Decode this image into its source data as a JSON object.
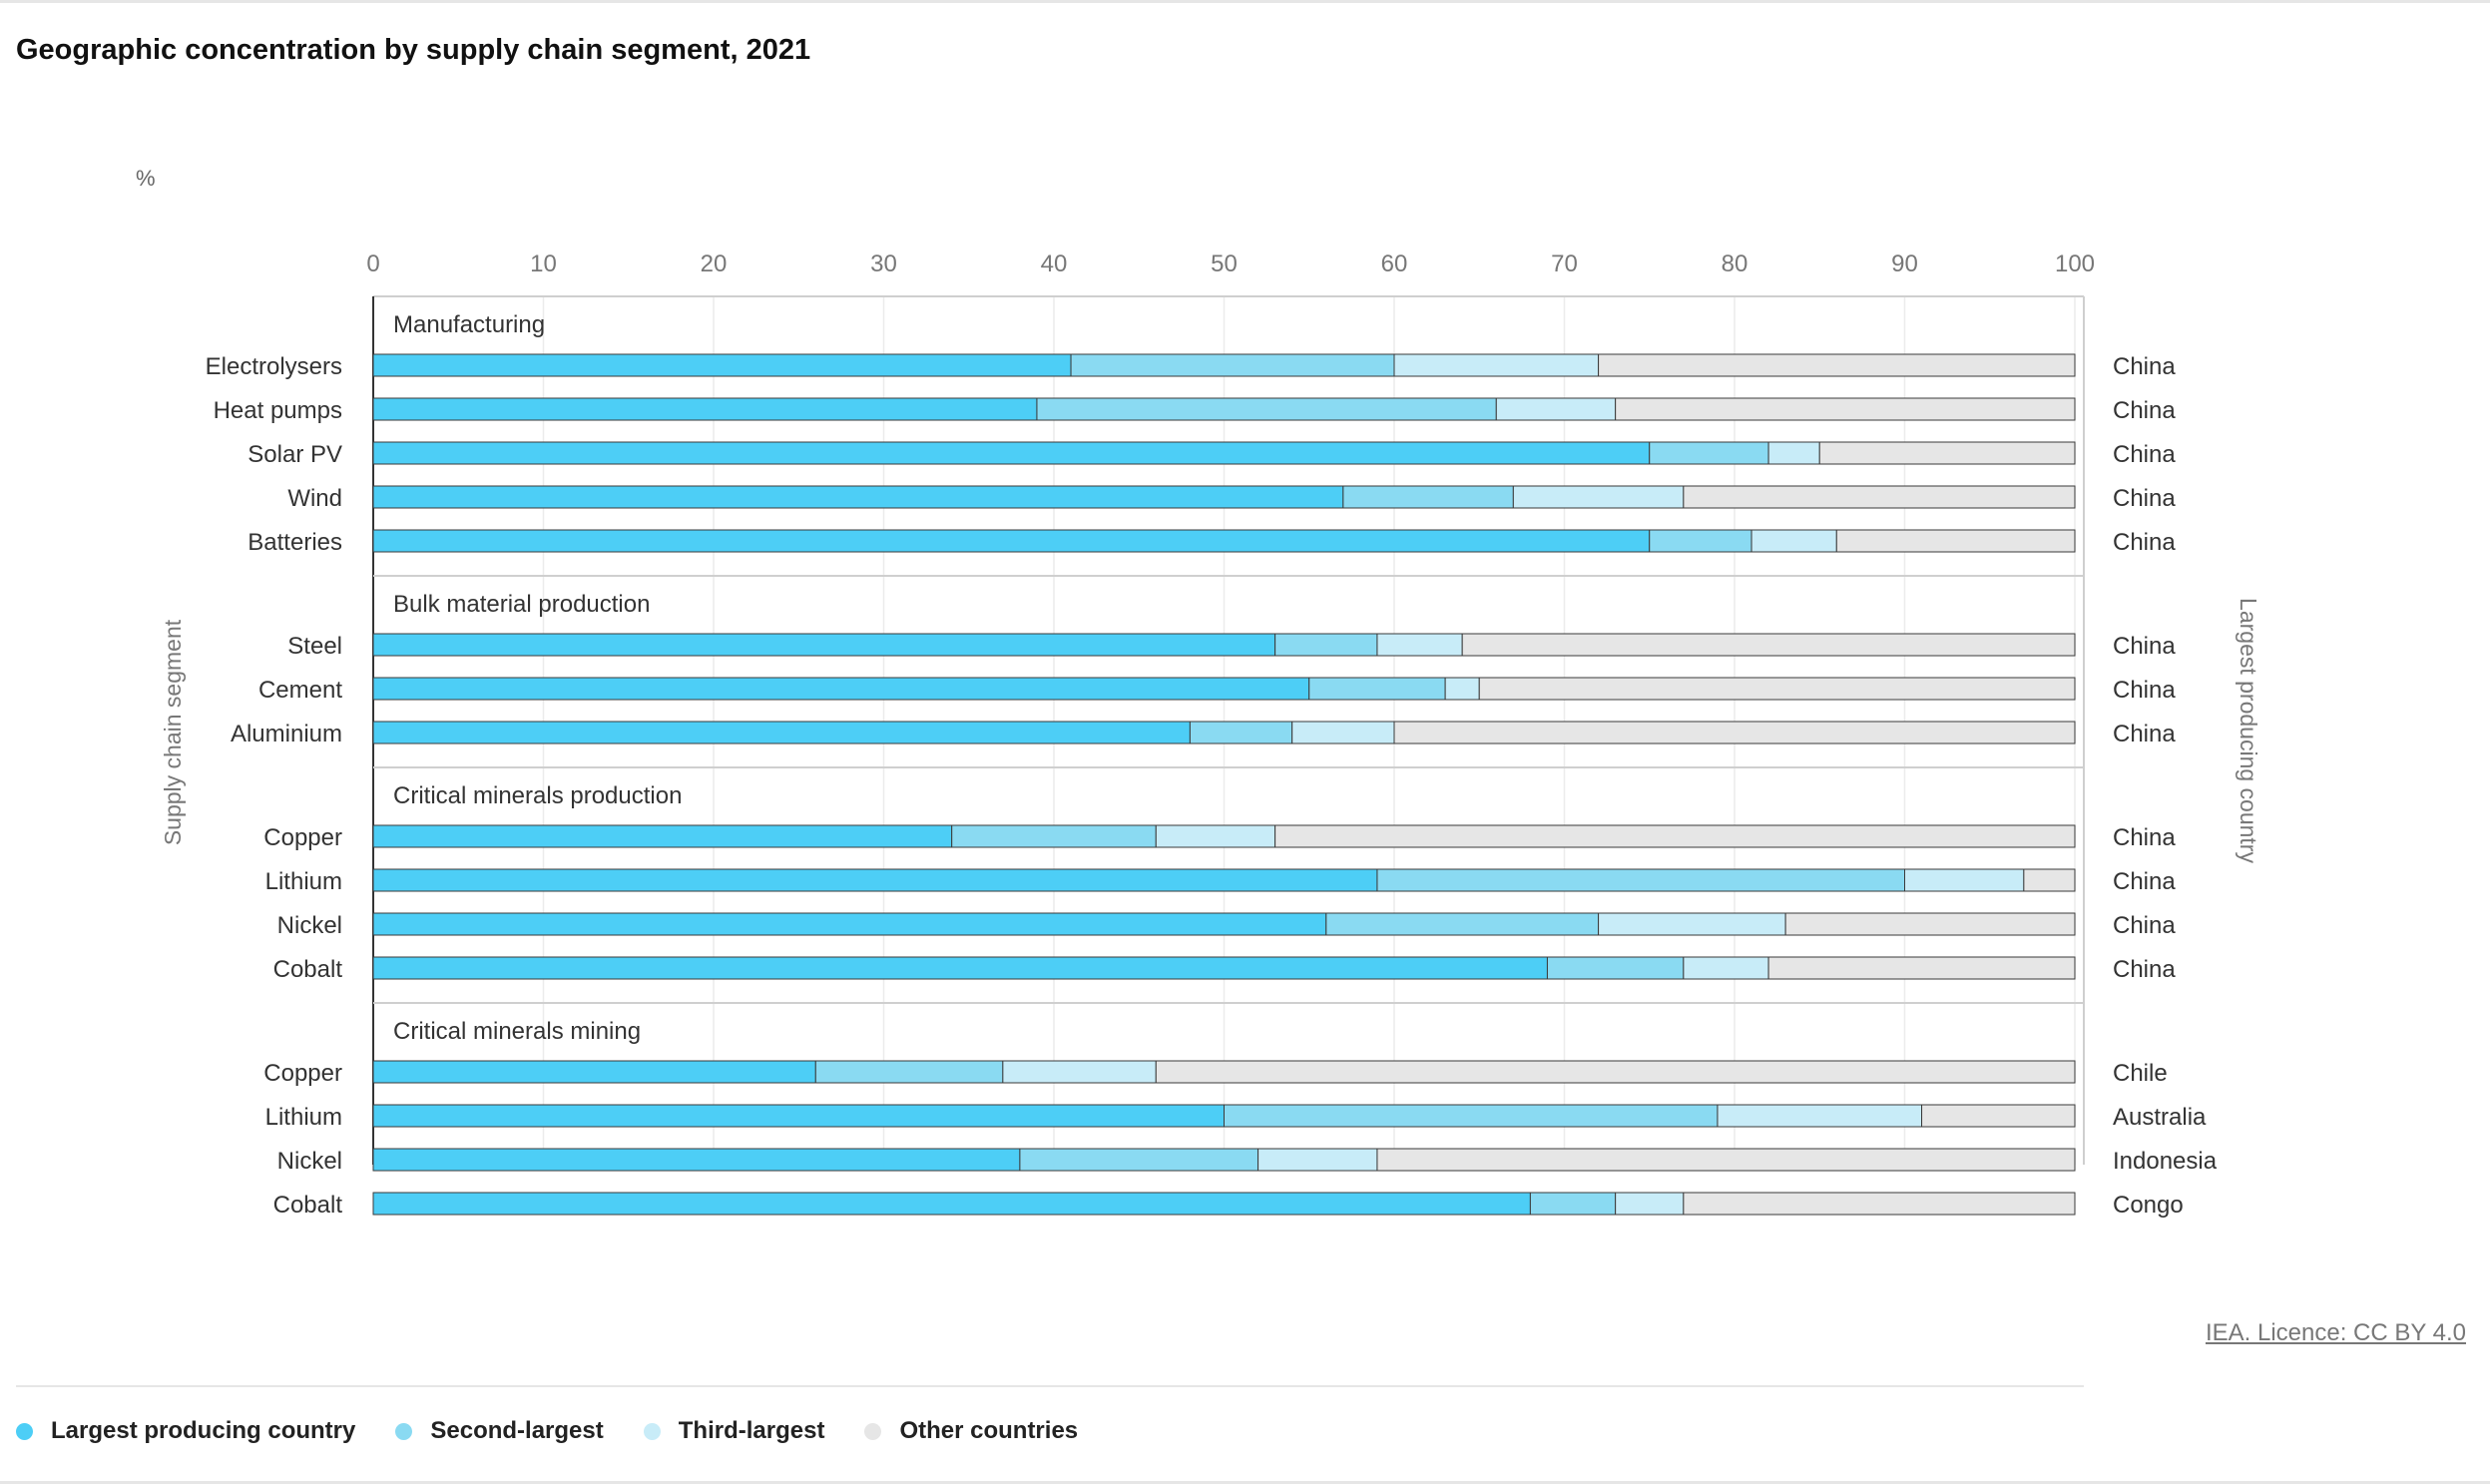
{
  "title": "Geographic concentration by supply chain segment, 2021",
  "credit": "IEA. Licence: CC BY 4.0",
  "chart_data": {
    "type": "bar",
    "orientation": "horizontal",
    "stacked": true,
    "title": "Geographic concentration by supply chain segment, 2021",
    "unit": "%",
    "xlabel": "",
    "ylabel": "Supply chain segment",
    "right_label": "Largest producing country",
    "xlim": [
      0,
      100
    ],
    "x_ticks": [
      "0",
      "10",
      "20",
      "30",
      "40",
      "50",
      "60",
      "70",
      "80",
      "90",
      "100"
    ],
    "grid": true,
    "legend_position": "bottom",
    "series": [
      {
        "name": "Largest producing country",
        "color": "#4dcef6"
      },
      {
        "name": "Second-largest",
        "color": "#8adaf2"
      },
      {
        "name": "Third-largest",
        "color": "#c8ecf8"
      },
      {
        "name": "Other countries",
        "color": "#e6e6e6"
      }
    ],
    "groups": [
      {
        "name": "Manufacturing",
        "rows": [
          {
            "label": "Electrolysers",
            "country": "China",
            "values": [
              41,
              19,
              12,
              28
            ]
          },
          {
            "label": "Heat pumps",
            "country": "China",
            "values": [
              39,
              27,
              7,
              27
            ]
          },
          {
            "label": "Solar PV",
            "country": "China",
            "values": [
              75,
              7,
              3,
              15
            ]
          },
          {
            "label": "Wind",
            "country": "China",
            "values": [
              57,
              10,
              10,
              23
            ]
          },
          {
            "label": "Batteries",
            "country": "China",
            "values": [
              75,
              6,
              5,
              14
            ]
          }
        ]
      },
      {
        "name": "Bulk material production",
        "rows": [
          {
            "label": "Steel",
            "country": "China",
            "values": [
              53,
              6,
              5,
              36
            ]
          },
          {
            "label": "Cement",
            "country": "China",
            "values": [
              55,
              8,
              2,
              35
            ]
          },
          {
            "label": "Aluminium",
            "country": "China",
            "values": [
              48,
              6,
              6,
              40
            ]
          }
        ]
      },
      {
        "name": "Critical minerals production",
        "rows": [
          {
            "label": "Copper",
            "country": "China",
            "values": [
              34,
              12,
              7,
              47
            ]
          },
          {
            "label": "Lithium",
            "country": "China",
            "values": [
              59,
              31,
              7,
              3
            ]
          },
          {
            "label": "Nickel",
            "country": "China",
            "values": [
              56,
              16,
              11,
              17
            ]
          },
          {
            "label": "Cobalt",
            "country": "China",
            "values": [
              69,
              8,
              5,
              18
            ]
          }
        ]
      },
      {
        "name": "Critical minerals mining",
        "rows": [
          {
            "label": "Copper",
            "country": "Chile",
            "values": [
              26,
              11,
              9,
              54
            ]
          },
          {
            "label": "Lithium",
            "country": "Australia",
            "values": [
              50,
              29,
              12,
              9
            ]
          },
          {
            "label": "Nickel",
            "country": "Indonesia",
            "values": [
              38,
              14,
              7,
              41
            ]
          },
          {
            "label": "Cobalt",
            "country": "Congo",
            "values": [
              68,
              5,
              4,
              23
            ]
          }
        ]
      }
    ]
  }
}
